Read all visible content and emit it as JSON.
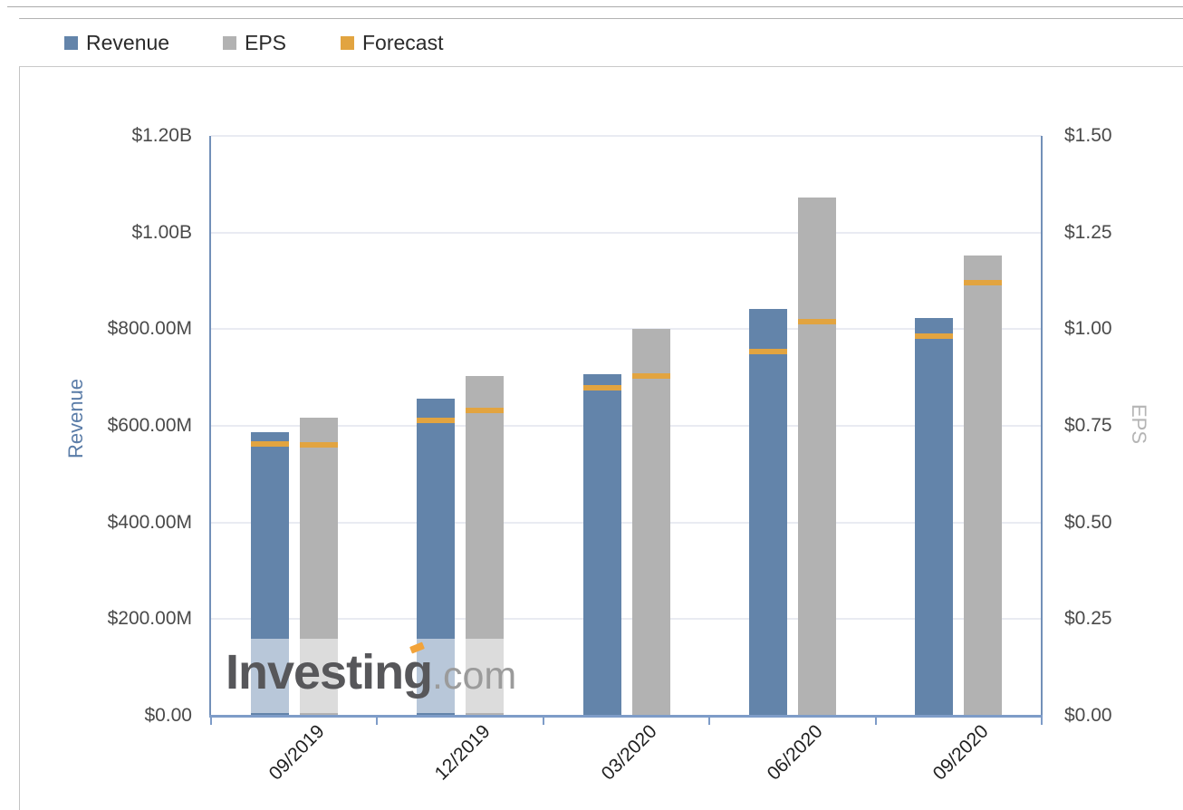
{
  "legend": [
    {
      "label": "Revenue",
      "color": "#6384aa"
    },
    {
      "label": "EPS",
      "color": "#b2b2b2"
    },
    {
      "label": "Forecast",
      "color": "#e2a440"
    }
  ],
  "watermark": {
    "brand": "Investing",
    "suffix": ".com"
  },
  "chart_data": {
    "type": "bar",
    "categories": [
      "09/2019",
      "12/2019",
      "03/2020",
      "06/2020",
      "09/2020"
    ],
    "series": [
      {
        "name": "Revenue",
        "axis": "left",
        "unit": "USD millions",
        "color": "#6384aa",
        "values": [
          586,
          656,
          707,
          841,
          824
        ]
      },
      {
        "name": "EPS",
        "axis": "right",
        "unit": "USD",
        "color": "#b2b2b2",
        "values": [
          0.77,
          0.88,
          1.0,
          1.34,
          1.19
        ]
      },
      {
        "name": "Revenue Forecast",
        "axis": "left",
        "unit": "USD millions",
        "color": "#e2a440",
        "values": [
          563,
          611,
          679,
          754,
          786
        ]
      },
      {
        "name": "EPS Forecast",
        "axis": "right",
        "unit": "USD",
        "color": "#e2a440",
        "values": [
          0.7,
          0.79,
          0.88,
          1.02,
          1.12
        ]
      }
    ],
    "left_axis": {
      "title": "Revenue",
      "tick_labels": [
        "$0.00",
        "$200.00M",
        "$400.00M",
        "$600.00M",
        "$800.00M",
        "$1.00B",
        "$1.20B"
      ],
      "tick_values": [
        0,
        200,
        400,
        600,
        800,
        1000,
        1200
      ],
      "max": 1200
    },
    "right_axis": {
      "title": "EPS",
      "tick_labels": [
        "$0.00",
        "$0.25",
        "$0.50",
        "$0.75",
        "$1.00",
        "$1.25",
        "$1.50"
      ],
      "tick_values": [
        0,
        0.25,
        0.5,
        0.75,
        1.0,
        1.25,
        1.5
      ],
      "max": 1.5
    },
    "grid": true,
    "legend_position": "top-left"
  }
}
